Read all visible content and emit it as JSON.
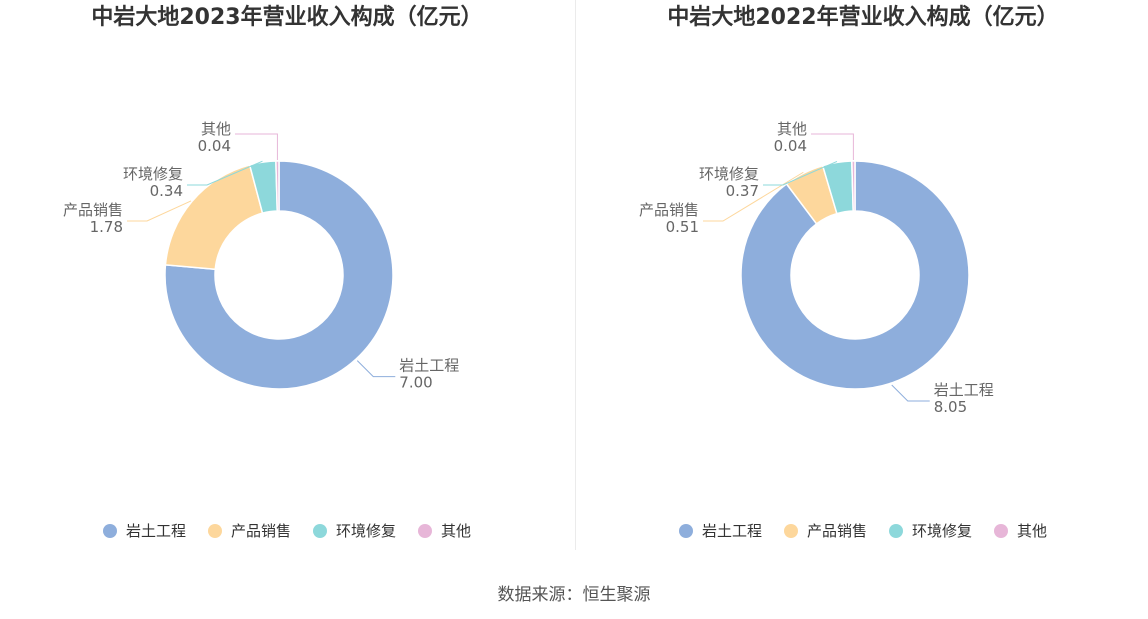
{
  "chart_data": [
    {
      "type": "pie",
      "title": "中岩大地2023年营业收入构成（亿元）",
      "categories": [
        "岩土工程",
        "产品销售",
        "环境修复",
        "其他"
      ],
      "values": [
        7.0,
        1.78,
        0.34,
        0.04
      ],
      "value_labels": [
        "7.00",
        "1.78",
        "0.34",
        "0.04"
      ],
      "colors": [
        "#8eaedc",
        "#fdd79c",
        "#8dd8db",
        "#e7b6d8"
      ],
      "legend_position": "bottom"
    },
    {
      "type": "pie",
      "title": "中岩大地2022年营业收入构成（亿元）",
      "categories": [
        "岩土工程",
        "产品销售",
        "环境修复",
        "其他"
      ],
      "values": [
        8.05,
        0.51,
        0.37,
        0.04
      ],
      "value_labels": [
        "8.05",
        "0.51",
        "0.37",
        "0.04"
      ],
      "colors": [
        "#8eaedc",
        "#fdd79c",
        "#8dd8db",
        "#e7b6d8"
      ],
      "legend_position": "bottom"
    }
  ],
  "source": "数据来源：恒生聚源"
}
